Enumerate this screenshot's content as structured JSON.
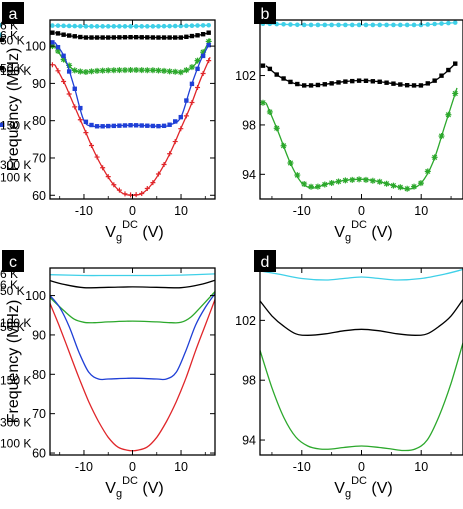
{
  "chart_data": [
    {
      "panel": "a",
      "type": "line",
      "markers": true,
      "ylabel": "Frequency (MHz)",
      "xlabel_main": "V",
      "xlabel_sub": "g",
      "xlabel_sup": "DC",
      "xlabel_unit": " (V)",
      "xlim": [
        -17,
        17
      ],
      "ylim": [
        59,
        107
      ],
      "xticks": [
        -10,
        0,
        10
      ],
      "yticks": [
        60,
        70,
        80,
        90,
        100
      ],
      "series": [
        {
          "name": "6 K",
          "color": "#3fd0e8",
          "marker": "dot",
          "x": [
            -16,
            -10,
            -5,
            0,
            5,
            10,
            16
          ],
          "y": [
            105.5,
            105.3,
            105.3,
            105.3,
            105.3,
            105.4,
            105.6
          ]
        },
        {
          "name": "50 K",
          "color": "#000000",
          "marker": "square",
          "x": [
            -16,
            -14,
            -10,
            -5,
            0,
            5,
            10,
            14,
            16
          ],
          "y": [
            103.6,
            103,
            102.3,
            102.3,
            102.4,
            102.3,
            102.3,
            103,
            103.7
          ]
        },
        {
          "name": "100 K",
          "color": "#2ca82c",
          "marker": "star",
          "x": [
            -16,
            -14,
            -12,
            -10,
            -8,
            -5,
            0,
            5,
            8,
            10,
            12,
            14,
            16
          ],
          "y": [
            100,
            96,
            93.5,
            93,
            93.3,
            93.5,
            93.6,
            93.5,
            93.2,
            93,
            94,
            97,
            102
          ]
        },
        {
          "name": "150 K",
          "color": "#1f3fd6",
          "marker": "square",
          "x": [
            -16,
            -14,
            -12,
            -10,
            -8,
            -6,
            0,
            6,
            8,
            10,
            12,
            14,
            16
          ],
          "y": [
            101,
            97,
            89,
            80,
            78.5,
            78.5,
            78.8,
            78.5,
            79,
            81,
            89,
            96,
            101
          ]
        },
        {
          "name": "300 K",
          "color": "#e0262a",
          "marker": "plus",
          "x": [
            -16,
            -14,
            -12,
            -10,
            -8,
            -6,
            -4,
            -2,
            0,
            2,
            4,
            6,
            8,
            10,
            12,
            14,
            16
          ],
          "y": [
            95,
            90,
            84,
            78,
            72,
            67,
            63,
            60.5,
            60,
            60.5,
            63,
            67,
            72,
            78,
            84,
            91,
            97
          ]
        }
      ],
      "legend_y": [
        105.6,
        101.7,
        93.5,
        78.9,
        68.2
      ]
    },
    {
      "panel": "b",
      "type": "line",
      "markers": true,
      "ylabel": "",
      "xlabel_main": "V",
      "xlabel_sub": "g",
      "xlabel_sup": "DC",
      "xlabel_unit": " (V)",
      "xlim": [
        -17,
        17
      ],
      "ylim": [
        92,
        106.5
      ],
      "xticks": [
        -10,
        0,
        10
      ],
      "yticks": [
        94,
        98,
        102
      ],
      "series": [
        {
          "name": "6 K",
          "color": "#3fd0e8",
          "marker": "dot",
          "x": [
            -16,
            -10,
            -5,
            0,
            5,
            10,
            16
          ],
          "y": [
            106.2,
            106.1,
            106.1,
            106.1,
            106.1,
            106.1,
            106.3
          ]
        },
        {
          "name": "50 K",
          "color": "#000000",
          "marker": "square",
          "x": [
            -16,
            -14,
            -12,
            -10,
            -8,
            -6,
            -3,
            0,
            3,
            6,
            8,
            10,
            12,
            14,
            16
          ],
          "y": [
            102.8,
            102,
            101.5,
            101.2,
            101.2,
            101.3,
            101.5,
            101.6,
            101.5,
            101.3,
            101.2,
            101.2,
            101.5,
            102.2,
            103.1
          ]
        },
        {
          "name": "100 K",
          "color": "#2ca82c",
          "marker": "star",
          "x": [
            -16,
            -14,
            -12,
            -10,
            -8,
            -6,
            -3,
            0,
            3,
            6,
            8,
            10,
            12,
            14,
            16
          ],
          "y": [
            99.8,
            97.5,
            95,
            93.3,
            92.9,
            93.2,
            93.5,
            93.6,
            93.4,
            93,
            92.8,
            93.3,
            95,
            98,
            101
          ]
        }
      ],
      "legend_y": [
        105.3,
        102.6,
        93.8
      ]
    },
    {
      "panel": "c",
      "type": "line",
      "markers": false,
      "ylabel": "Frequency (MHz)",
      "xlabel_main": "V",
      "xlabel_sub": "g",
      "xlabel_sup": "DC",
      "xlabel_unit": " (V)",
      "xlim": [
        -17,
        17
      ],
      "ylim": [
        59.5,
        107
      ],
      "xticks": [
        -10,
        0,
        10
      ],
      "yticks": [
        60,
        70,
        80,
        90,
        100
      ],
      "series": [
        {
          "name": "6 K",
          "color": "#3fd0e8",
          "marker": "none",
          "x": [
            -17,
            -10,
            -5,
            0,
            5,
            10,
            17
          ],
          "y": [
            105.3,
            105.1,
            105.1,
            105.1,
            105.1,
            105.2,
            105.5
          ]
        },
        {
          "name": "50 K",
          "color": "#000000",
          "marker": "none",
          "x": [
            -17,
            -14,
            -10,
            -5,
            0,
            5,
            10,
            14,
            17
          ],
          "y": [
            103.8,
            102.8,
            102,
            102.1,
            102.2,
            102.1,
            102,
            102.8,
            103.9
          ]
        },
        {
          "name": "100 K",
          "color": "#2ca82c",
          "marker": "none",
          "x": [
            -17,
            -14,
            -12,
            -10,
            -8,
            -5,
            0,
            5,
            8,
            10,
            12,
            14,
            17
          ],
          "y": [
            99.5,
            96,
            94,
            93.2,
            93.1,
            93.3,
            93.5,
            93.3,
            93.1,
            93.2,
            94.5,
            97,
            101
          ]
        },
        {
          "name": "150 K",
          "color": "#1f3fd6",
          "marker": "none",
          "x": [
            -17,
            -15,
            -13,
            -11,
            -9,
            -7,
            -5,
            0,
            5,
            7,
            9,
            11,
            13,
            15,
            17
          ],
          "y": [
            100,
            97,
            92,
            85.5,
            80.5,
            78.8,
            78.8,
            79,
            78.8,
            78.8,
            80.5,
            86,
            92.5,
            97,
            100.5
          ]
        },
        {
          "name": "300 K",
          "color": "#e0262a",
          "marker": "none",
          "x": [
            -17,
            -15,
            -13,
            -11,
            -9,
            -7,
            -5,
            -3,
            -1,
            0,
            1,
            3,
            5,
            7,
            9,
            11,
            13,
            15,
            17
          ],
          "y": [
            98,
            92,
            85.5,
            79,
            73,
            68,
            64,
            61.5,
            60.7,
            60.6,
            60.7,
            61.5,
            64,
            68,
            73,
            79,
            86,
            92.5,
            99
          ]
        }
      ],
      "legend_y": [
        105.6,
        101.3,
        93.1,
        78.5,
        67.9
      ]
    },
    {
      "panel": "d",
      "type": "line",
      "markers": false,
      "ylabel": "",
      "xlabel_main": "V",
      "xlabel_sub": "g",
      "xlabel_sup": "DC",
      "xlabel_unit": " (V)",
      "xlim": [
        -17,
        17
      ],
      "ylim": [
        93,
        105.5
      ],
      "xticks": [
        -10,
        0,
        10
      ],
      "yticks": [
        94,
        98,
        102
      ],
      "series": [
        {
          "name": "6 K",
          "color": "#3fd0e8",
          "marker": "none",
          "x": [
            -17,
            -14,
            -10,
            -6,
            -3,
            0,
            3,
            6,
            10,
            14,
            17
          ],
          "y": [
            105.3,
            105.1,
            104.8,
            104.7,
            104.8,
            104.9,
            104.8,
            104.7,
            104.8,
            105.1,
            105.4
          ]
        },
        {
          "name": "50 K",
          "color": "#000000",
          "marker": "none",
          "x": [
            -17,
            -15,
            -13,
            -11,
            -9,
            -6,
            -3,
            0,
            3,
            6,
            9,
            11,
            13,
            15,
            17
          ],
          "y": [
            103.3,
            102.3,
            101.6,
            101.1,
            101,
            101.1,
            101.3,
            101.4,
            101.3,
            101.1,
            101,
            101.1,
            101.6,
            102.3,
            103.4
          ]
        },
        {
          "name": "100 K",
          "color": "#2ca82c",
          "marker": "none",
          "x": [
            -17,
            -15,
            -13,
            -11,
            -9,
            -7,
            -5,
            -3,
            0,
            3,
            5,
            7,
            9,
            11,
            13,
            15,
            17
          ],
          "y": [
            100,
            97.5,
            95.5,
            94.2,
            93.6,
            93.4,
            93.4,
            93.5,
            93.6,
            93.5,
            93.4,
            93.3,
            93.4,
            94,
            95.6,
            97.8,
            100.5
          ]
        }
      ],
      "legend_y": [
        104.4,
        101.6,
        93.8
      ]
    }
  ]
}
